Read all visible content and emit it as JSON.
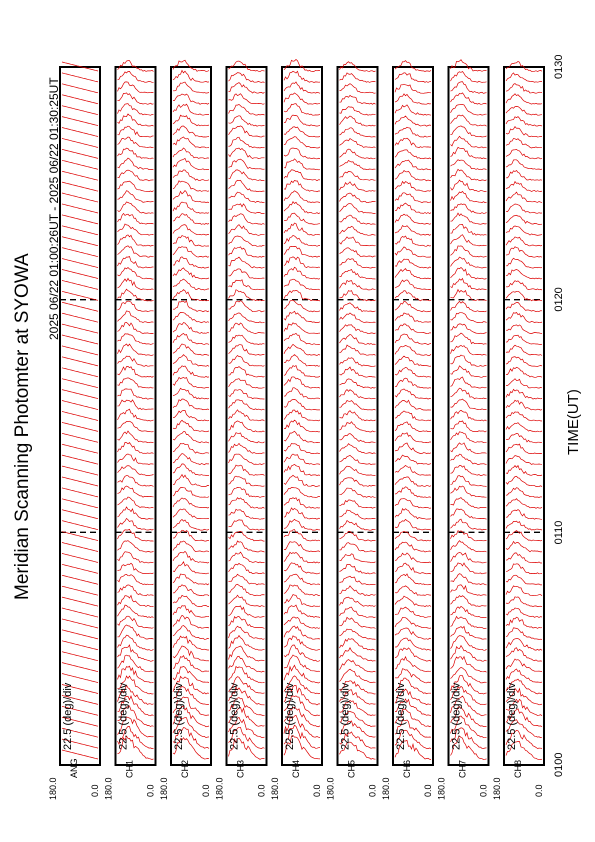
{
  "title": "Meridian Scanning Photomter at SYOWA",
  "subtitle": "2025 06/22 01:00:26UT - 2025 06/22 01:30:25UT",
  "xlabel": "TIME(UT)",
  "chart_data": {
    "type": "line",
    "title": "Meridian Scanning Photomter at SYOWA",
    "subtitle": "2025 06/22 01:00:26UT - 2025 06/22 01:30:25UT",
    "xlabel": "TIME(UT)",
    "x_ticks": [
      "0100",
      "0110",
      "0120",
      "0130"
    ],
    "x_range": [
      "0100",
      "0130"
    ],
    "scale_label": "22.5 (deg)/div",
    "y_tick_top": "180.0",
    "y_tick_bottom": "0.0",
    "colors": {
      "trace": "#dd0000",
      "frame": "#000000"
    },
    "panels": [
      {
        "name": "ANG",
        "kind": "angle"
      },
      {
        "name": "CH1",
        "kind": "intensity",
        "seed": 3,
        "peak": 0.9
      },
      {
        "name": "CH2",
        "kind": "intensity",
        "seed": 7,
        "peak": 0.85
      },
      {
        "name": "CH3",
        "kind": "intensity",
        "seed": 11,
        "peak": 0.8
      },
      {
        "name": "CH4",
        "kind": "intensity",
        "seed": 17,
        "peak": 0.9
      },
      {
        "name": "CH5",
        "kind": "intensity",
        "seed": 23,
        "peak": 0.6
      },
      {
        "name": "CH6",
        "kind": "intensity",
        "seed": 29,
        "peak": 0.7
      },
      {
        "name": "CH7",
        "kind": "intensity",
        "seed": 31,
        "peak": 0.85
      },
      {
        "name": "CH8",
        "kind": "intensity",
        "seed": 37,
        "peak": 0.65
      }
    ]
  }
}
